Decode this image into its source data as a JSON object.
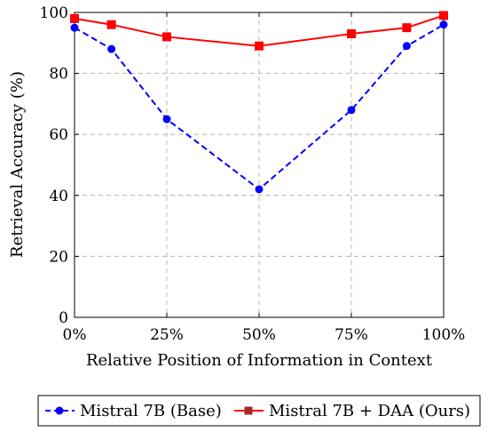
{
  "chart_data": {
    "type": "line",
    "title": "",
    "xlabel": "Relative Position of Information in Context",
    "ylabel": "Retrieval Accuracy (%)",
    "x": [
      0,
      10,
      25,
      50,
      75,
      90,
      100
    ],
    "xlim": [
      0,
      100
    ],
    "ylim": [
      0,
      100
    ],
    "xticks": [
      0,
      25,
      50,
      75,
      100
    ],
    "xtick_labels": [
      "0%",
      "25%",
      "50%",
      "75%",
      "100%"
    ],
    "yticks": [
      0,
      20,
      40,
      60,
      80,
      100
    ],
    "ytick_labels": [
      "0",
      "20",
      "40",
      "60",
      "80",
      "100"
    ],
    "grid": true,
    "legend_position": "bottom",
    "series": [
      {
        "name": "Mistral 7B (Base)",
        "values": [
          95,
          88,
          65,
          42,
          68,
          89,
          96
        ],
        "color": "#0000ff",
        "line_style": "dashed",
        "marker": "circle"
      },
      {
        "name": "Mistral 7B + DAA (Ours)",
        "values": [
          98,
          96,
          92,
          89,
          93,
          95,
          99
        ],
        "color": "#ff0000",
        "line_style": "solid",
        "marker": "square"
      }
    ]
  }
}
